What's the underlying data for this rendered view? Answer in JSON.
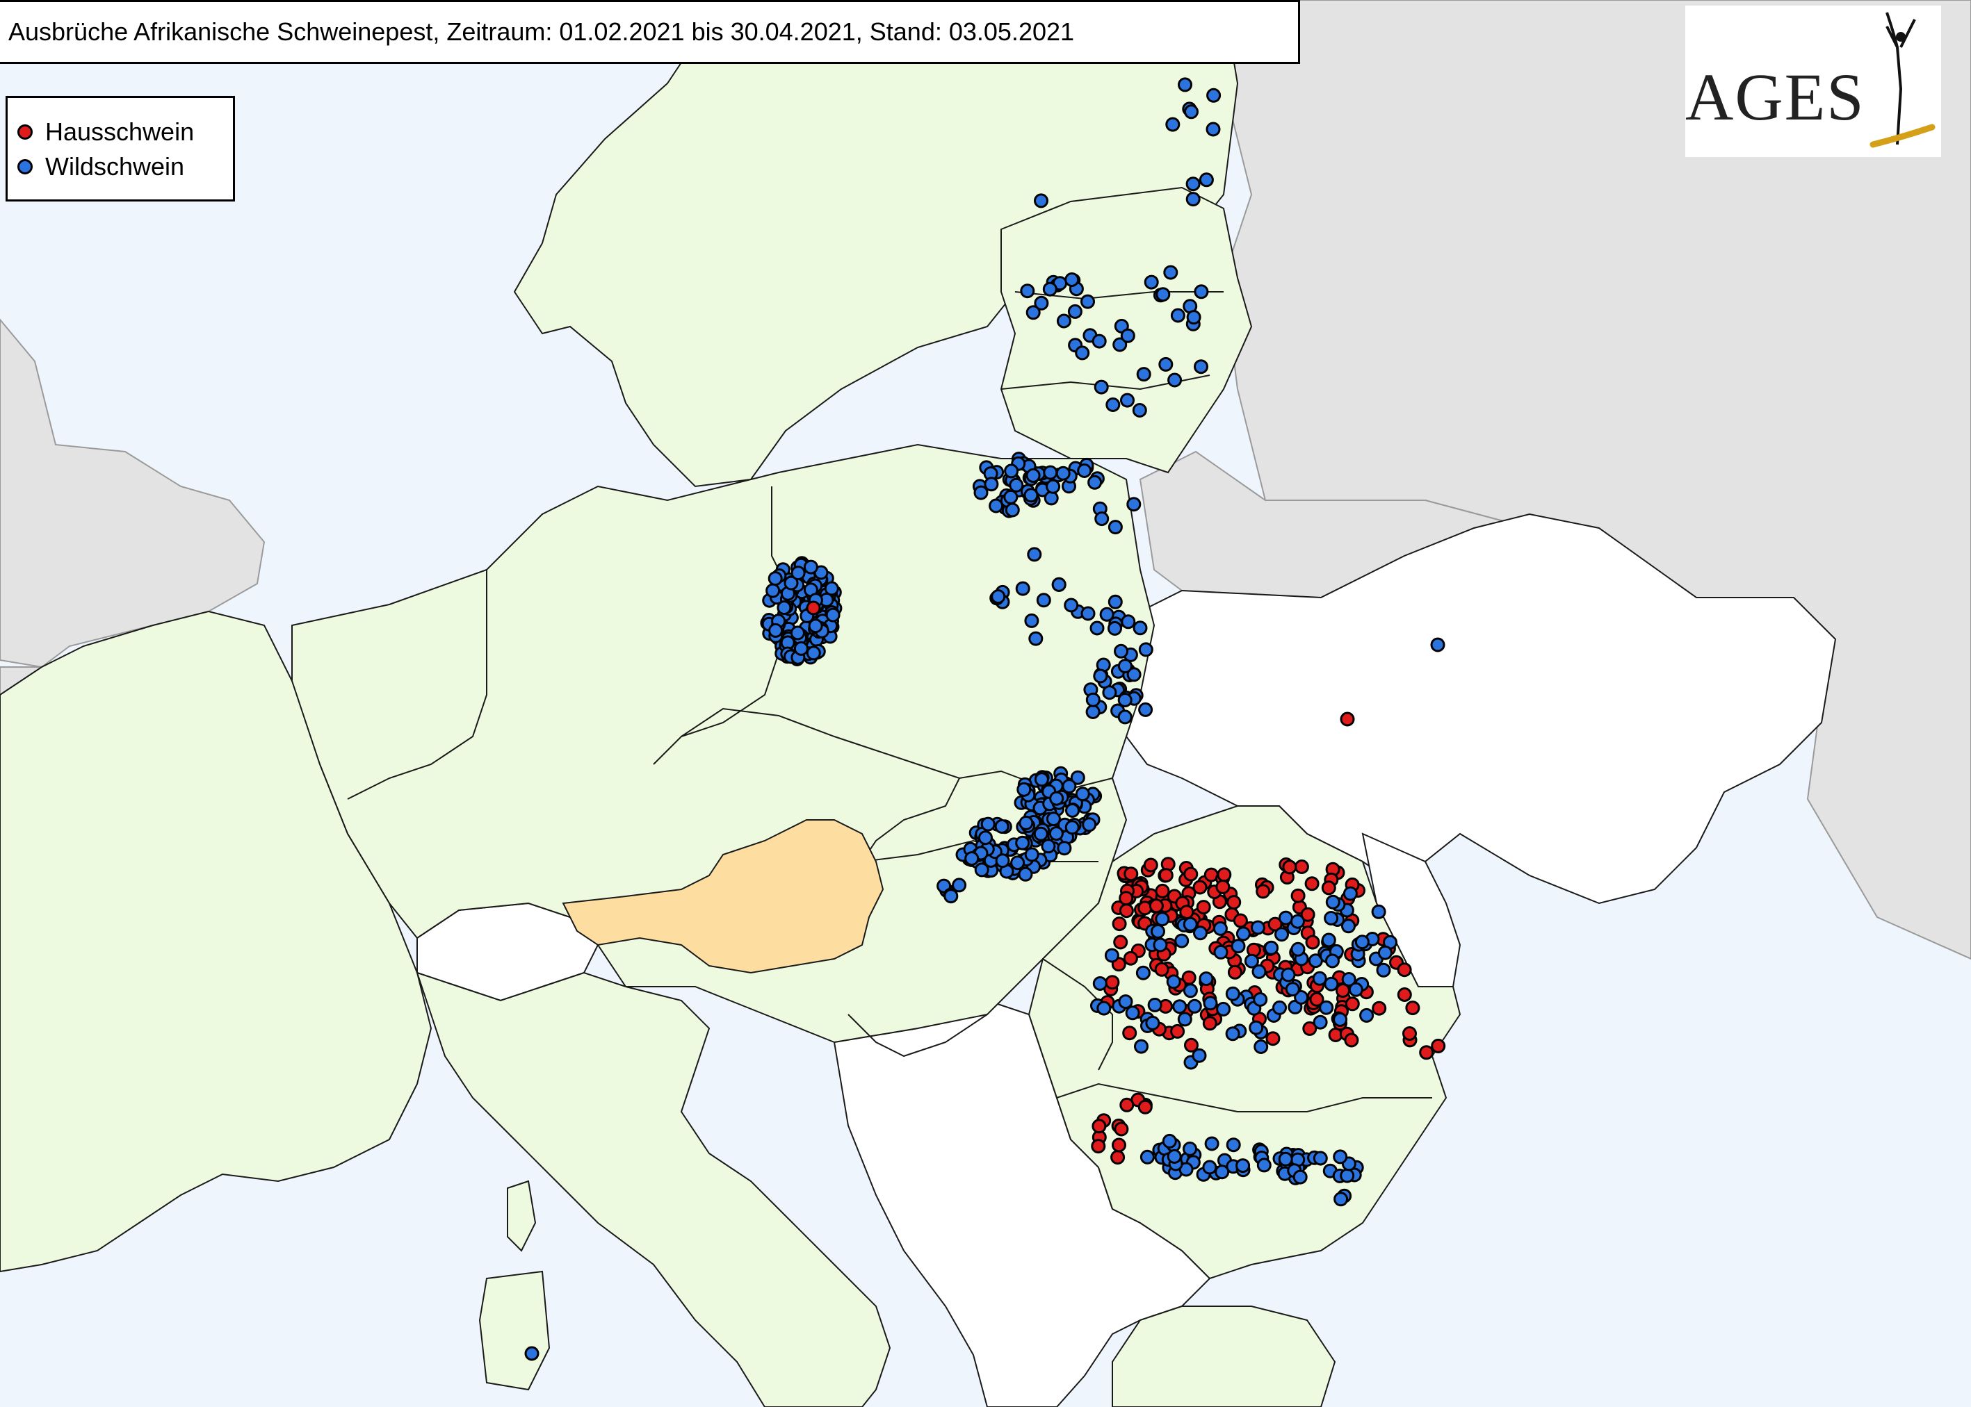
{
  "title": "Ausbrüche Afrikanische Schweinepest, Zeitraum: 01.02.2021 bis 30.04.2021, Stand: 03.05.2021",
  "legend": {
    "domestic_label": "Hausschwein",
    "wild_label": "Wildschwein"
  },
  "logo": {
    "text": "AGES"
  },
  "colors": {
    "sea": "#eef5fc",
    "eu_country": "#eefadf",
    "austria": "#fddda0",
    "non_eu_affected": "#ffffff",
    "other_land": "#e3e3e3",
    "domestic_pig": "#e01b1b",
    "wild_boar": "#2b74e0",
    "border": "#1a1a1a",
    "logo_gold": "#d4a017"
  },
  "icons": {
    "domestic_marker": "red-circle-icon",
    "wild_marker": "blue-circle-icon",
    "logo_figure": "human-figure-icon"
  }
}
